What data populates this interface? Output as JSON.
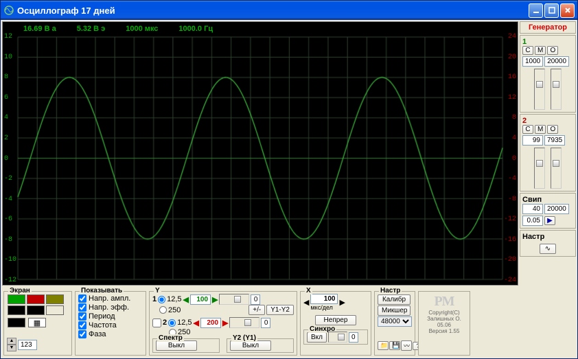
{
  "window": {
    "title": "Осциллограф 17 дней"
  },
  "readout": {
    "va": "16.69 В а",
    "ve": "5.32 В э",
    "period": "1000 мкс",
    "freq": "1000.0 Гц"
  },
  "scope": {
    "bg": "#000000",
    "grid": "#304030",
    "axis": "#308030",
    "trace": "#40c040",
    "left_ticks": [
      -12,
      -10,
      -8,
      -6,
      -4,
      -2,
      0,
      2,
      4,
      6,
      8,
      10,
      12
    ],
    "right_ticks": [
      -24,
      -20,
      -16,
      -12,
      -8,
      -4,
      0,
      4,
      8,
      12,
      16,
      20,
      24
    ],
    "left_color": "#00b000",
    "right_color": "#b00000",
    "amplitude": 8,
    "cycles": 3.1,
    "phase_offset": 0.0
  },
  "ekran": {
    "label": "Экран",
    "palette": [
      "#00a000",
      "#c00000",
      "#808000",
      "#000000",
      "#000000",
      "#ece9d8"
    ],
    "pattern_icon": "▦",
    "spin_value": "123"
  },
  "show": {
    "label": "Показывать",
    "items": [
      {
        "label": "Напр. ампл.",
        "checked": true
      },
      {
        "label": "Напр. эфф.",
        "checked": true
      },
      {
        "label": "Период",
        "checked": true
      },
      {
        "label": "Частота",
        "checked": true
      },
      {
        "label": "Фаза",
        "checked": true
      }
    ]
  },
  "Y": {
    "label": "Y",
    "ch1": {
      "opt1": "12,5",
      "opt2": "250",
      "mult": "100"
    },
    "ch2": {
      "opt1": "12,5",
      "opt2": "250",
      "mult": "200",
      "enabled": false,
      "num": "2"
    },
    "btns": {
      "pm": "+/-",
      "y1y2": "Y1-Y2"
    },
    "spectrum": {
      "label": "Спектр",
      "btn": "Выкл"
    },
    "y2y1": {
      "label": "Y2 (Y1)",
      "btn": "Выкл"
    },
    "slider_val": "0"
  },
  "X": {
    "label": "X",
    "value": "100",
    "unit": "мкс/дел",
    "neprer": "Непрер",
    "sync": {
      "label": "Синхро",
      "btn": "Вкл",
      "val": "0"
    }
  },
  "nastr": {
    "label": "Настр",
    "kalib": "Калибр",
    "miksher": "Микшер",
    "rate": "48000",
    "logo": "PM",
    "copy1": "Copyright(C)",
    "copy2": "Залишных О. 05.06",
    "copy3": "Версия 1.55"
  },
  "toolbar_icons": [
    "folder",
    "save",
    "osc",
    "help",
    "help2"
  ],
  "gen": {
    "header": "Генератор",
    "ch1": {
      "label": "1",
      "C": "С",
      "M": "М",
      "O": "О",
      "v1": "1000",
      "v2": "20000"
    },
    "ch2": {
      "label": "2",
      "C": "С",
      "M": "М",
      "O": "О",
      "v1": "99",
      "v2": "7935"
    },
    "sweep": {
      "label": "Свип",
      "v1": "40",
      "v2": "20000",
      "step": "0.05",
      "play": "▶"
    },
    "nastr": {
      "label": "Настр",
      "icon": "∿"
    }
  }
}
